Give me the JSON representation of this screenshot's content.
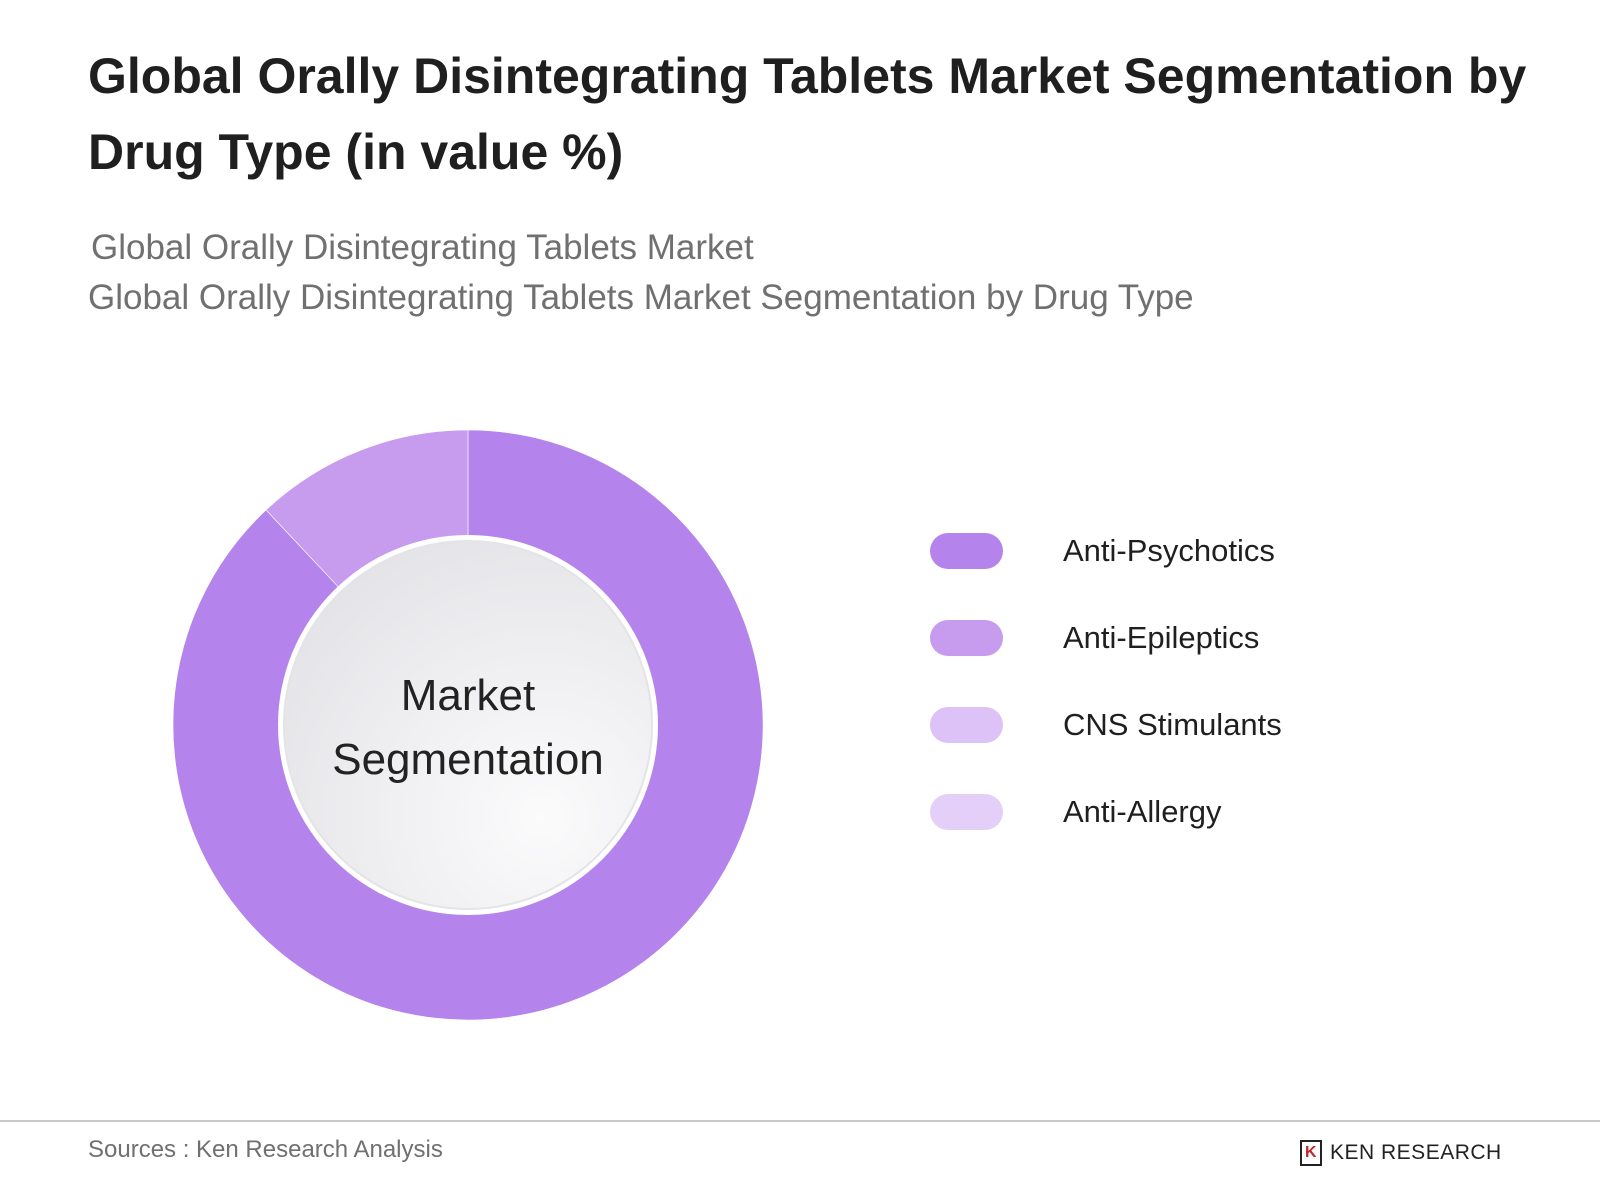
{
  "title": "Global Orally Disintegrating Tablets Market Segmentation by Drug Type (in value %)",
  "subtitle_1": "Global Orally Disintegrating Tablets Market",
  "subtitle_2": "Global Orally Disintegrating Tablets Market Segmentation by Drug Type",
  "chart_data": {
    "type": "pie",
    "variant": "donut",
    "center_label": "Market Segmentation",
    "center_label_lines": [
      "Market",
      "Segmentation"
    ],
    "categories": [
      "Anti-Psychotics",
      "Anti-Epileptics",
      "CNS Stimulants",
      "Anti-Allergy"
    ],
    "values": [
      88,
      12,
      0,
      0
    ],
    "colors": [
      "#b483eb",
      "#c79cef",
      "#dcc2f6",
      "#e3cff7"
    ],
    "legend_position": "right"
  },
  "footer": {
    "source": "Sources : Ken Research Analysis",
    "logo_text": "KEN RESEARCH",
    "logo_mark": "K"
  }
}
